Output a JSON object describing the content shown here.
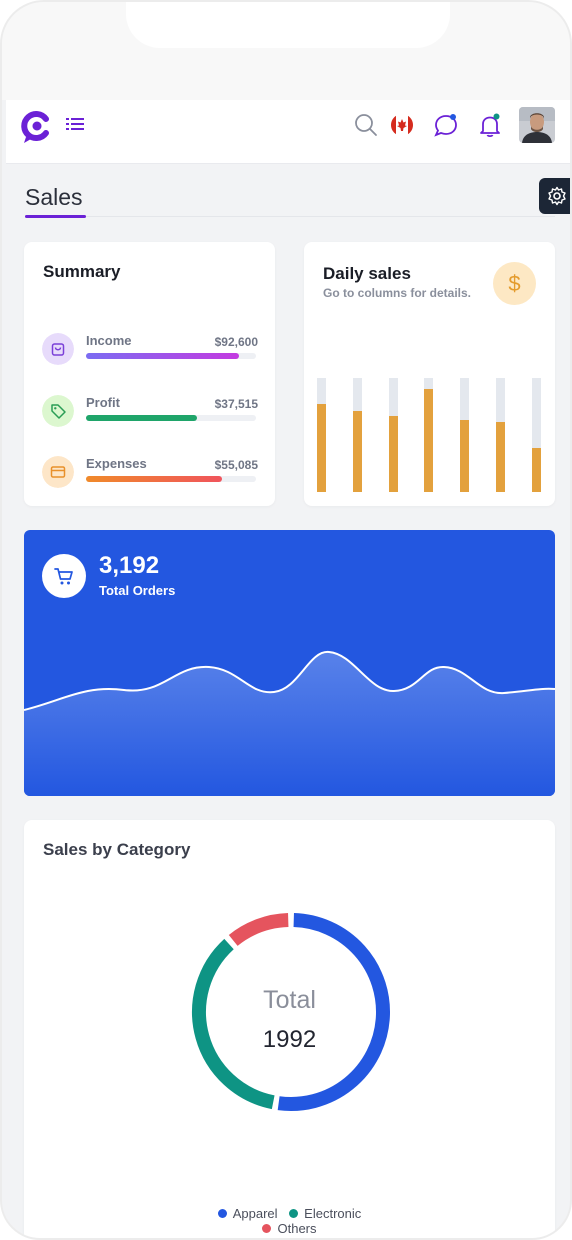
{
  "page": {
    "title": "Sales"
  },
  "colors": {
    "accent": "#6b21d6",
    "blue": "#2357e0",
    "teal": "#0e9484",
    "red": "#e5545e",
    "orange": "#e3a13d"
  },
  "topbar": {
    "icons": [
      "logo-icon",
      "menu-icon",
      "search-icon",
      "flag-canada-icon",
      "chat-icon",
      "bell-icon",
      "avatar"
    ]
  },
  "summary": {
    "title": "Summary",
    "items": [
      {
        "label": "Income",
        "value": "$92,600",
        "level": 0.9,
        "icon": "bag-icon"
      },
      {
        "label": "Profit",
        "value": "$37,515",
        "level": 0.65,
        "icon": "tag-icon"
      },
      {
        "label": "Expenses",
        "value": "$55,085",
        "level": 0.8,
        "icon": "card-icon"
      }
    ]
  },
  "daily_sales": {
    "title": "Daily sales",
    "subtitle": "Go to columns for details.",
    "icon": "dollar-icon",
    "symbol": "$",
    "bars": [
      0.77,
      0.71,
      0.67,
      0.9,
      0.63,
      0.61,
      0.39
    ]
  },
  "orders": {
    "value": "3,192",
    "label": "Total Orders",
    "icon": "cart-icon"
  },
  "category": {
    "title": "Sales by Category",
    "center_label": "Total",
    "center_value": "1992"
  },
  "chart_data": {
    "type": "pie",
    "categories": [
      "Apparel",
      "Electronic",
      "Others"
    ],
    "values": [
      50,
      34,
      10
    ],
    "colors": [
      "#2357e0",
      "#0e9484",
      "#e5545e"
    ],
    "legend": "bottom"
  }
}
